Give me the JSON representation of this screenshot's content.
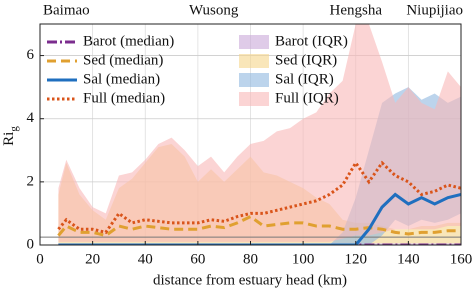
{
  "chart_data": {
    "type": "line",
    "xlabel": "distance from estuary head (km)",
    "ylabel": "Ri",
    "ylabel_subscript": "g",
    "xlim": [
      0,
      160
    ],
    "ylim": [
      0,
      7
    ],
    "xticks": [
      0,
      20,
      40,
      60,
      80,
      100,
      120,
      140,
      160
    ],
    "yticks": [
      0,
      2,
      4,
      6
    ],
    "grid": true,
    "legend": "upper left",
    "reference_line": 0.25,
    "top_labels": [
      {
        "label": "Baimao",
        "x": 10
      },
      {
        "label": "Wusong",
        "x": 66
      },
      {
        "label": "Hengsha",
        "x": 120
      },
      {
        "label": "Niupijiao",
        "x": 150
      }
    ],
    "x": [
      7,
      10,
      15,
      20,
      25,
      30,
      35,
      40,
      45,
      50,
      55,
      60,
      65,
      70,
      75,
      80,
      85,
      90,
      95,
      100,
      105,
      110,
      115,
      120,
      125,
      130,
      135,
      140,
      145,
      150,
      155,
      160
    ],
    "series": [
      {
        "name": "Barot (median)",
        "color": "#7b2d8e",
        "dash": "10 3 2 3",
        "values": [
          0,
          0,
          0,
          0,
          0,
          0,
          0,
          0,
          0,
          0,
          0,
          0,
          0,
          0,
          0,
          0,
          0,
          0,
          0,
          0,
          0,
          0,
          0,
          0,
          0,
          0,
          0,
          0,
          0,
          0,
          0,
          0
        ]
      },
      {
        "name": "Sed (median)",
        "color": "#e0a030",
        "dash": "9 5",
        "values": [
          0.3,
          0.6,
          0.4,
          0.4,
          0.3,
          0.6,
          0.5,
          0.6,
          0.55,
          0.5,
          0.5,
          0.5,
          0.6,
          0.55,
          0.7,
          0.9,
          0.6,
          0.65,
          0.7,
          0.7,
          0.6,
          0.6,
          0.5,
          0.5,
          0.55,
          0.5,
          0.4,
          0.35,
          0.4,
          0.4,
          0.45,
          0.45
        ]
      },
      {
        "name": "Sal (median)",
        "color": "#1f6fbf",
        "dash": "none",
        "values": [
          0,
          0,
          0,
          0,
          0,
          0,
          0,
          0,
          0,
          0,
          0,
          0,
          0,
          0,
          0,
          0,
          0,
          0,
          0,
          0,
          0,
          0,
          0,
          0,
          0.5,
          1.2,
          1.6,
          1.3,
          1.5,
          1.3,
          1.5,
          1.6
        ]
      },
      {
        "name": "Full (median)",
        "color": "#d9541a",
        "dash": "2.5 2.5",
        "values": [
          0.5,
          0.8,
          0.5,
          0.5,
          0.4,
          1.0,
          0.7,
          0.8,
          0.75,
          0.7,
          0.7,
          0.7,
          0.8,
          0.75,
          0.9,
          1.0,
          1.0,
          1.1,
          1.2,
          1.3,
          1.4,
          1.6,
          1.9,
          2.6,
          2.0,
          2.6,
          2.2,
          2.0,
          1.6,
          1.7,
          1.9,
          1.8
        ]
      },
      {
        "name": "Barot (IQR)",
        "color": "#c9a8d8",
        "low": [
          0,
          0,
          0,
          0,
          0,
          0,
          0,
          0,
          0,
          0,
          0,
          0,
          0,
          0,
          0,
          0,
          0,
          0,
          0,
          0,
          0,
          0,
          0,
          0,
          0,
          0,
          0,
          0,
          0,
          0,
          0,
          0
        ],
        "high": [
          0.05,
          0.05,
          0.05,
          0.05,
          0.05,
          0.05,
          0.05,
          0.05,
          0.05,
          0.05,
          0.05,
          0.05,
          0.05,
          0.05,
          0.05,
          0.05,
          0.05,
          0.05,
          0.05,
          0.05,
          0.05,
          0.05,
          0.05,
          0.05,
          0.05,
          0.05,
          0.05,
          0.05,
          0.05,
          0.05,
          0.05,
          0.05
        ]
      },
      {
        "name": "Sed (IQR)",
        "color": "#f5d58a",
        "low": [
          0.05,
          0.05,
          0.05,
          0.05,
          0.05,
          0.05,
          0.05,
          0.05,
          0.05,
          0.05,
          0.05,
          0.05,
          0.05,
          0.05,
          0.05,
          0.05,
          0.05,
          0.05,
          0.05,
          0.05,
          0.05,
          0.05,
          0.05,
          0.05,
          0.05,
          0.05,
          0.05,
          0.05,
          0.05,
          0.05,
          0.05,
          0.05
        ],
        "high": [
          1.6,
          2.6,
          1.6,
          1.1,
          0.8,
          1.8,
          2.1,
          2.6,
          3.1,
          3.2,
          2.8,
          2.0,
          2.4,
          2.0,
          2.4,
          2.8,
          2.3,
          2.2,
          2.0,
          1.8,
          1.5,
          1.3,
          0.8,
          0.7,
          0.7,
          0.6,
          0.5,
          0.5,
          0.6,
          0.6,
          0.7,
          0.7
        ]
      },
      {
        "name": "Sal (IQR)",
        "color": "#8fb8e0",
        "low": [
          0,
          0,
          0,
          0,
          0,
          0,
          0,
          0,
          0,
          0,
          0,
          0,
          0,
          0,
          0,
          0,
          0,
          0,
          0,
          0,
          0,
          0,
          0,
          0,
          0,
          0.3,
          0.8,
          0.6,
          0.8,
          0.7,
          0.8,
          1.0
        ],
        "high": [
          0,
          0,
          0,
          0,
          0,
          0,
          0,
          0,
          0,
          0,
          0,
          0,
          0,
          0,
          0,
          0,
          0,
          0,
          0,
          0,
          0,
          0,
          0.4,
          1.5,
          3.0,
          4.5,
          4.8,
          5.0,
          4.6,
          4.8,
          4.5,
          4.7
        ]
      },
      {
        "name": "Full (IQR)",
        "color": "#f9b8b8",
        "low": [
          0.1,
          0.1,
          0.1,
          0.1,
          0.1,
          0.1,
          0.1,
          0.1,
          0.1,
          0.1,
          0.1,
          0.1,
          0.1,
          0.1,
          0.1,
          0.1,
          0.1,
          0.1,
          0.1,
          0.1,
          0.1,
          0.1,
          0.2,
          0.3,
          0.3,
          0.4,
          0.5,
          0.5,
          0.5,
          0.5,
          0.6,
          0.6
        ],
        "high": [
          1.8,
          2.7,
          1.8,
          1.2,
          1.0,
          2.2,
          2.3,
          2.7,
          3.2,
          3.4,
          3.0,
          2.5,
          2.8,
          2.3,
          2.8,
          3.2,
          3.3,
          3.6,
          3.7,
          4.0,
          4.2,
          4.8,
          5.2,
          7.0,
          7.0,
          5.8,
          4.5,
          5.0,
          4.5,
          4.3,
          5.5,
          5.0
        ]
      }
    ]
  }
}
